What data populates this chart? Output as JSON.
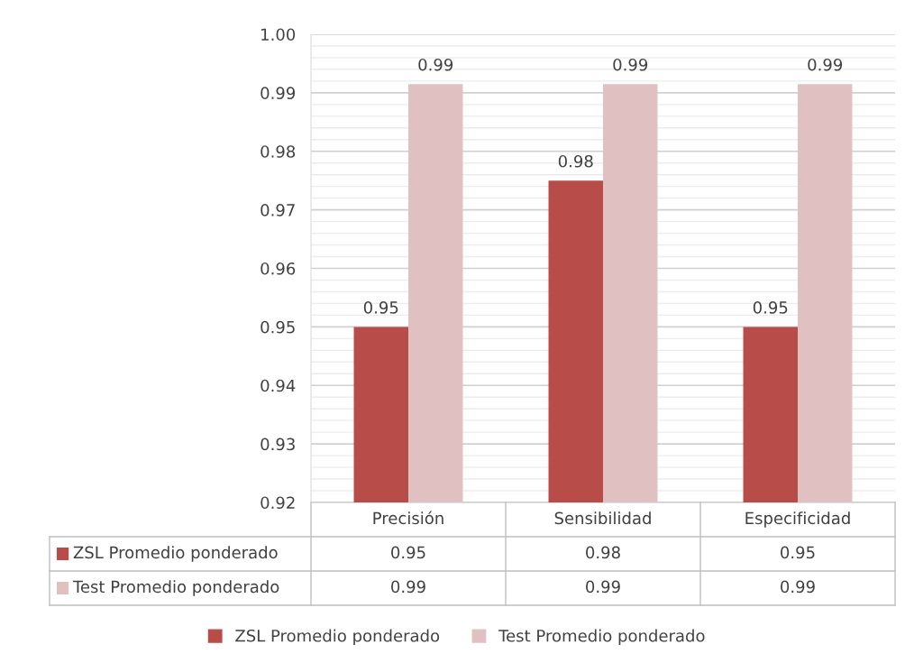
{
  "chart_data": {
    "type": "bar",
    "categories": [
      "Precisión",
      "Sensibilidad",
      "Especificidad"
    ],
    "series": [
      {
        "name": "ZSL Promedio ponderado",
        "color": "#b84c48",
        "values": [
          0.95,
          0.975,
          0.95
        ],
        "value_labels": [
          "0.95",
          "0.98",
          "0.95"
        ]
      },
      {
        "name": "Test Promedio ponderado",
        "color": "#e1c0c1",
        "values": [
          0.9915,
          0.9915,
          0.9915
        ],
        "value_labels": [
          "0.99",
          "0.99",
          "0.99"
        ]
      }
    ],
    "ylim": [
      0.92,
      1.0
    ],
    "yticks": [
      0.92,
      {
        "value": 0.922,
        "label": null
      },
      {
        "value": 0.924,
        "label": null
      },
      {
        "value": 0.926,
        "label": null
      },
      {
        "value": 0.928,
        "label": null
      },
      0.93,
      {
        "value": 0.932,
        "label": null
      },
      {
        "value": 0.934,
        "label": null
      },
      {
        "value": 0.936,
        "label": null
      },
      {
        "value": 0.938,
        "label": null
      },
      0.94,
      {
        "value": 0.942,
        "label": null
      },
      {
        "value": 0.944,
        "label": null
      },
      {
        "value": 0.946,
        "label": null
      },
      {
        "value": 0.948,
        "label": null
      },
      0.95,
      {
        "value": 0.952,
        "label": null
      },
      {
        "value": 0.954,
        "label": null
      },
      {
        "value": 0.956,
        "label": null
      },
      {
        "value": 0.958,
        "label": null
      },
      0.96,
      {
        "value": 0.962,
        "label": null
      },
      {
        "value": 0.964,
        "label": null
      },
      {
        "value": 0.966,
        "label": null
      },
      {
        "value": 0.968,
        "label": null
      },
      0.97,
      {
        "value": 0.972,
        "label": null
      },
      {
        "value": 0.974,
        "label": null
      },
      {
        "value": 0.976,
        "label": null
      },
      {
        "value": 0.978,
        "label": null
      },
      0.98,
      {
        "value": 0.982,
        "label": null
      },
      {
        "value": 0.984,
        "label": null
      },
      {
        "value": 0.986,
        "label": null
      },
      {
        "value": 0.988,
        "label": null
      },
      0.99,
      {
        "value": 0.992,
        "label": null
      },
      {
        "value": 0.994,
        "label": null
      },
      {
        "value": 0.996,
        "label": null
      },
      {
        "value": 0.998,
        "label": null
      },
      {
        "value": 1.0,
        "label": "1.00"
      }
    ],
    "grid": "y",
    "legend": "bottom"
  }
}
